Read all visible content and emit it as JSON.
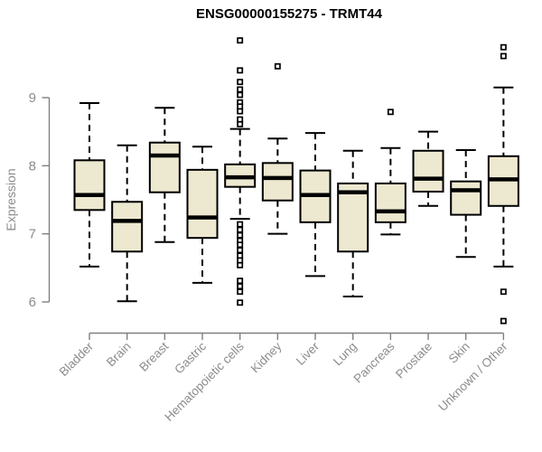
{
  "colors": {
    "box_fill": "#EDE8D0",
    "box_stroke": "#000000",
    "median": "#000000",
    "axis": "#808080",
    "tick_text": "#8c8c8c",
    "title_text": "#000000",
    "background": "#ffffff",
    "outlier_fill": "#ffffff"
  },
  "chart_data": {
    "type": "boxplot",
    "title": "ENSG00000155275 - TRMT44",
    "xlabel": "",
    "ylabel": "Expression",
    "y_axis": {
      "label": "Expression",
      "ticks": [
        6,
        7,
        8,
        9
      ],
      "range": [
        6,
        9
      ]
    },
    "grid": "off",
    "legend": "none",
    "categories": [
      "Bladder",
      "Brain",
      "Breast",
      "Gastric",
      "Hematopoietic cells",
      "Kidney",
      "Liver",
      "Lung",
      "Pancreas",
      "Prostate",
      "Skin",
      "Unknown / Other"
    ],
    "series": [
      {
        "name": "Bladder",
        "whisker_low": 6.52,
        "q1": 7.35,
        "median": 7.57,
        "q3": 8.08,
        "whisker_high": 8.92,
        "outliers": []
      },
      {
        "name": "Brain",
        "whisker_low": 6.01,
        "q1": 6.74,
        "median": 7.19,
        "q3": 7.47,
        "whisker_high": 8.3,
        "outliers": []
      },
      {
        "name": "Breast",
        "whisker_low": 6.88,
        "q1": 7.61,
        "median": 8.15,
        "q3": 8.34,
        "whisker_high": 8.85,
        "outliers": []
      },
      {
        "name": "Gastric",
        "whisker_low": 6.28,
        "q1": 6.94,
        "median": 7.24,
        "q3": 7.94,
        "whisker_high": 8.28,
        "outliers": []
      },
      {
        "name": "Hematopoietic cells",
        "whisker_low": 7.22,
        "q1": 7.69,
        "median": 7.83,
        "q3": 8.02,
        "whisker_high": 8.54,
        "outliers": [
          9.84,
          9.4,
          9.23,
          9.12,
          9.04,
          8.93,
          8.87,
          8.8,
          8.68,
          8.61,
          7.14,
          7.06,
          6.98,
          6.9,
          6.84,
          6.76,
          6.68,
          6.61,
          6.54,
          6.31,
          6.23,
          6.15,
          5.99
        ]
      },
      {
        "name": "Kidney",
        "whisker_low": 7.0,
        "q1": 7.49,
        "median": 7.82,
        "q3": 8.04,
        "whisker_high": 8.4,
        "outliers": [
          9.46
        ]
      },
      {
        "name": "Liver",
        "whisker_low": 6.38,
        "q1": 7.17,
        "median": 7.57,
        "q3": 7.93,
        "whisker_high": 8.48,
        "outliers": []
      },
      {
        "name": "Lung",
        "whisker_low": 6.08,
        "q1": 6.74,
        "median": 7.61,
        "q3": 7.74,
        "whisker_high": 8.22,
        "outliers": []
      },
      {
        "name": "Pancreas",
        "whisker_low": 6.99,
        "q1": 7.17,
        "median": 7.33,
        "q3": 7.74,
        "whisker_high": 8.26,
        "outliers": [
          8.79
        ]
      },
      {
        "name": "Prostate",
        "whisker_low": 7.41,
        "q1": 7.62,
        "median": 7.81,
        "q3": 8.22,
        "whisker_high": 8.5,
        "outliers": []
      },
      {
        "name": "Skin",
        "whisker_low": 6.66,
        "q1": 7.28,
        "median": 7.64,
        "q3": 7.77,
        "whisker_high": 8.23,
        "outliers": []
      },
      {
        "name": "Unknown / Other",
        "whisker_low": 6.52,
        "q1": 7.41,
        "median": 7.8,
        "q3": 8.14,
        "whisker_high": 9.15,
        "outliers": [
          9.74,
          9.61,
          6.15,
          5.72
        ]
      }
    ]
  }
}
